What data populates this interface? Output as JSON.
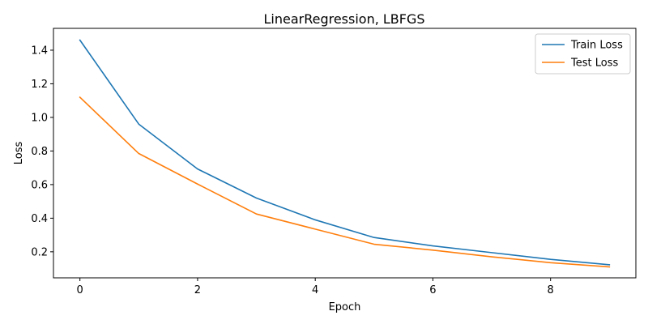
{
  "chart_data": {
    "type": "line",
    "title": "LinearRegression, LBFGS",
    "xlabel": "Epoch",
    "ylabel": "Loss",
    "x": [
      0,
      1,
      2,
      3,
      4,
      5,
      6,
      7,
      8,
      9
    ],
    "xlim": [
      -0.45,
      9.45
    ],
    "ylim": [
      0.045,
      1.53
    ],
    "xticks": [
      0,
      2,
      4,
      6,
      8
    ],
    "xtick_labels": [
      "0",
      "2",
      "4",
      "6",
      "8"
    ],
    "yticks": [
      0.2,
      0.4,
      0.6,
      0.8,
      1.0,
      1.2,
      1.4
    ],
    "ytick_labels": [
      "0.2",
      "0.4",
      "0.6",
      "0.8",
      "1.0",
      "1.2",
      "1.4"
    ],
    "grid": false,
    "legend_position": "top-right",
    "series": [
      {
        "name": "Train Loss",
        "color": "#1f77b4",
        "values": [
          1.46,
          0.96,
          0.693,
          0.52,
          0.39,
          0.285,
          0.235,
          0.195,
          0.155,
          0.123
        ]
      },
      {
        "name": "Test Loss",
        "color": "#ff7f0e",
        "values": [
          1.12,
          0.785,
          0.603,
          0.425,
          0.335,
          0.245,
          0.21,
          0.17,
          0.135,
          0.11
        ]
      }
    ]
  }
}
